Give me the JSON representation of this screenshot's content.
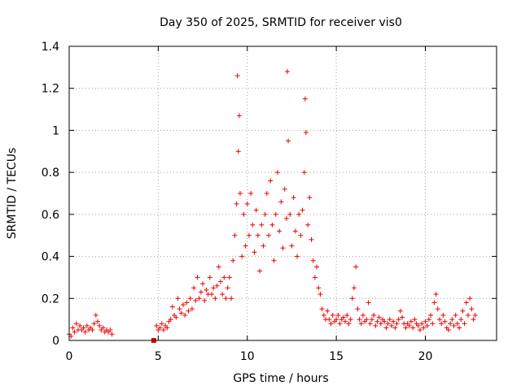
{
  "chart_data": {
    "type": "scatter",
    "title": "Day 350 of 2025, SRMTID for receiver vis0",
    "xlabel": "GPS time / hours",
    "ylabel": "SRMTID / TECUs",
    "xlim": [
      0,
      24
    ],
    "ylim": [
      0,
      1.4
    ],
    "x_ticks": [
      0,
      5,
      10,
      15,
      20
    ],
    "x_tick_labels": [
      "0",
      "5",
      "10",
      "15",
      "20"
    ],
    "y_ticks": [
      0,
      0.2,
      0.4,
      0.6,
      0.8,
      1,
      1.2,
      1.4
    ],
    "y_tick_labels": [
      "0",
      "0.2",
      "0.4",
      "0.6",
      "0.8",
      "1",
      "1.2",
      "1.4"
    ],
    "grid": true,
    "marker": "+",
    "color": "#ee0000",
    "series": [
      {
        "name": "SRMTID",
        "points": [
          [
            0.0,
            0.03
          ],
          [
            0.1,
            0.02
          ],
          [
            0.2,
            0.06
          ],
          [
            0.3,
            0.04
          ],
          [
            0.4,
            0.08
          ],
          [
            0.5,
            0.05
          ],
          [
            0.6,
            0.07
          ],
          [
            0.7,
            0.05
          ],
          [
            0.8,
            0.06
          ],
          [
            0.9,
            0.04
          ],
          [
            1.0,
            0.07
          ],
          [
            1.1,
            0.05
          ],
          [
            1.2,
            0.06
          ],
          [
            1.3,
            0.05
          ],
          [
            1.4,
            0.08
          ],
          [
            1.5,
            0.12
          ],
          [
            1.6,
            0.09
          ],
          [
            1.7,
            0.07
          ],
          [
            1.8,
            0.05
          ],
          [
            1.9,
            0.06
          ],
          [
            2.0,
            0.04
          ],
          [
            2.1,
            0.05
          ],
          [
            2.2,
            0.04
          ],
          [
            2.3,
            0.05
          ],
          [
            2.4,
            0.03
          ],
          [
            4.9,
            0.07
          ],
          [
            5.0,
            0.05
          ],
          [
            5.1,
            0.06
          ],
          [
            5.2,
            0.08
          ],
          [
            5.3,
            0.05
          ],
          [
            5.4,
            0.07
          ],
          [
            5.5,
            0.06
          ],
          [
            5.6,
            0.09
          ],
          [
            5.7,
            0.1
          ],
          [
            5.8,
            0.16
          ],
          [
            5.9,
            0.12
          ],
          [
            6.0,
            0.11
          ],
          [
            6.1,
            0.2
          ],
          [
            6.2,
            0.15
          ],
          [
            6.3,
            0.13
          ],
          [
            6.4,
            0.17
          ],
          [
            6.5,
            0.12
          ],
          [
            6.6,
            0.18
          ],
          [
            6.7,
            0.14
          ],
          [
            6.8,
            0.2
          ],
          [
            6.9,
            0.15
          ],
          [
            7.0,
            0.25
          ],
          [
            7.1,
            0.19
          ],
          [
            7.2,
            0.3
          ],
          [
            7.3,
            0.2
          ],
          [
            7.4,
            0.23
          ],
          [
            7.5,
            0.27
          ],
          [
            7.6,
            0.19
          ],
          [
            7.7,
            0.24
          ],
          [
            7.8,
            0.22
          ],
          [
            7.9,
            0.3
          ],
          [
            8.0,
            0.22
          ],
          [
            8.1,
            0.25
          ],
          [
            8.2,
            0.2
          ],
          [
            8.3,
            0.26
          ],
          [
            8.4,
            0.35
          ],
          [
            8.5,
            0.28
          ],
          [
            8.6,
            0.22
          ],
          [
            8.7,
            0.3
          ],
          [
            8.8,
            0.2
          ],
          [
            8.9,
            0.25
          ],
          [
            9.0,
            0.3
          ],
          [
            9.1,
            0.2
          ],
          [
            9.2,
            0.38
          ],
          [
            9.3,
            0.5
          ],
          [
            9.4,
            0.65
          ],
          [
            9.45,
            1.26
          ],
          [
            9.5,
            0.9
          ],
          [
            9.55,
            1.07
          ],
          [
            9.6,
            0.7
          ],
          [
            9.7,
            0.4
          ],
          [
            9.8,
            0.6
          ],
          [
            9.9,
            0.45
          ],
          [
            10.0,
            0.65
          ],
          [
            10.1,
            0.5
          ],
          [
            10.2,
            0.7
          ],
          [
            10.3,
            0.55
          ],
          [
            10.4,
            0.42
          ],
          [
            10.5,
            0.62
          ],
          [
            10.6,
            0.5
          ],
          [
            10.7,
            0.33
          ],
          [
            10.8,
            0.55
          ],
          [
            10.9,
            0.45
          ],
          [
            11.0,
            0.6
          ],
          [
            11.1,
            0.7
          ],
          [
            11.2,
            0.5
          ],
          [
            11.3,
            0.76
          ],
          [
            11.4,
            0.55
          ],
          [
            11.5,
            0.38
          ],
          [
            11.6,
            0.6
          ],
          [
            11.7,
            0.8
          ],
          [
            11.8,
            0.52
          ],
          [
            11.9,
            0.66
          ],
          [
            12.0,
            0.44
          ],
          [
            12.1,
            0.72
          ],
          [
            12.2,
            0.58
          ],
          [
            12.25,
            1.28
          ],
          [
            12.3,
            0.95
          ],
          [
            12.4,
            0.6
          ],
          [
            12.5,
            0.45
          ],
          [
            12.6,
            0.68
          ],
          [
            12.7,
            0.52
          ],
          [
            12.8,
            0.4
          ],
          [
            12.9,
            0.6
          ],
          [
            13.0,
            0.5
          ],
          [
            13.1,
            0.62
          ],
          [
            13.2,
            0.8
          ],
          [
            13.25,
            1.15
          ],
          [
            13.3,
            0.99
          ],
          [
            13.4,
            0.55
          ],
          [
            13.5,
            0.68
          ],
          [
            13.6,
            0.48
          ],
          [
            13.7,
            0.38
          ],
          [
            13.8,
            0.3
          ],
          [
            13.9,
            0.35
          ],
          [
            14.0,
            0.25
          ],
          [
            14.1,
            0.22
          ],
          [
            14.2,
            0.15
          ],
          [
            14.3,
            0.12
          ],
          [
            14.4,
            0.1
          ],
          [
            14.5,
            0.14
          ],
          [
            14.6,
            0.1
          ],
          [
            14.7,
            0.08
          ],
          [
            14.8,
            0.12
          ],
          [
            14.9,
            0.09
          ],
          [
            15.0,
            0.1
          ],
          [
            15.1,
            0.12
          ],
          [
            15.2,
            0.08
          ],
          [
            15.3,
            0.1
          ],
          [
            15.4,
            0.11
          ],
          [
            15.5,
            0.09
          ],
          [
            15.6,
            0.12
          ],
          [
            15.7,
            0.08
          ],
          [
            15.8,
            0.1
          ],
          [
            15.9,
            0.2
          ],
          [
            16.0,
            0.25
          ],
          [
            16.1,
            0.35
          ],
          [
            16.2,
            0.15
          ],
          [
            16.3,
            0.1
          ],
          [
            16.4,
            0.08
          ],
          [
            16.5,
            0.12
          ],
          [
            16.6,
            0.09
          ],
          [
            16.7,
            0.1
          ],
          [
            16.8,
            0.18
          ],
          [
            16.9,
            0.08
          ],
          [
            17.0,
            0.1
          ],
          [
            17.1,
            0.12
          ],
          [
            17.2,
            0.07
          ],
          [
            17.3,
            0.09
          ],
          [
            17.4,
            0.11
          ],
          [
            17.5,
            0.08
          ],
          [
            17.6,
            0.1
          ],
          [
            17.7,
            0.09
          ],
          [
            17.8,
            0.06
          ],
          [
            17.9,
            0.08
          ],
          [
            18.0,
            0.1
          ],
          [
            18.1,
            0.07
          ],
          [
            18.2,
            0.09
          ],
          [
            18.3,
            0.06
          ],
          [
            18.4,
            0.08
          ],
          [
            18.5,
            0.1
          ],
          [
            18.6,
            0.14
          ],
          [
            18.7,
            0.11
          ],
          [
            18.8,
            0.08
          ],
          [
            18.9,
            0.06
          ],
          [
            19.0,
            0.08
          ],
          [
            19.1,
            0.07
          ],
          [
            19.2,
            0.09
          ],
          [
            19.3,
            0.06
          ],
          [
            19.4,
            0.1
          ],
          [
            19.5,
            0.08
          ],
          [
            19.6,
            0.07
          ],
          [
            19.7,
            0.05
          ],
          [
            19.8,
            0.08
          ],
          [
            19.9,
            0.06
          ],
          [
            20.0,
            0.09
          ],
          [
            20.1,
            0.07
          ],
          [
            20.2,
            0.1
          ],
          [
            20.3,
            0.12
          ],
          [
            20.4,
            0.08
          ],
          [
            20.5,
            0.18
          ],
          [
            20.6,
            0.22
          ],
          [
            20.7,
            0.15
          ],
          [
            20.8,
            0.1
          ],
          [
            20.9,
            0.08
          ],
          [
            21.0,
            0.12
          ],
          [
            21.1,
            0.09
          ],
          [
            21.2,
            0.06
          ],
          [
            21.3,
            0.05
          ],
          [
            21.4,
            0.08
          ],
          [
            21.5,
            0.1
          ],
          [
            21.6,
            0.07
          ],
          [
            21.7,
            0.12
          ],
          [
            21.8,
            0.08
          ],
          [
            21.9,
            0.06
          ],
          [
            22.0,
            0.1
          ],
          [
            22.1,
            0.14
          ],
          [
            22.2,
            0.08
          ],
          [
            22.3,
            0.18
          ],
          [
            22.4,
            0.12
          ],
          [
            22.5,
            0.2
          ],
          [
            22.6,
            0.15
          ],
          [
            22.7,
            0.1
          ],
          [
            22.8,
            0.12
          ]
        ]
      },
      {
        "name": "SRMTID (square markers)",
        "marker": "square",
        "points": [
          [
            4.75,
            0.0
          ]
        ]
      }
    ]
  }
}
